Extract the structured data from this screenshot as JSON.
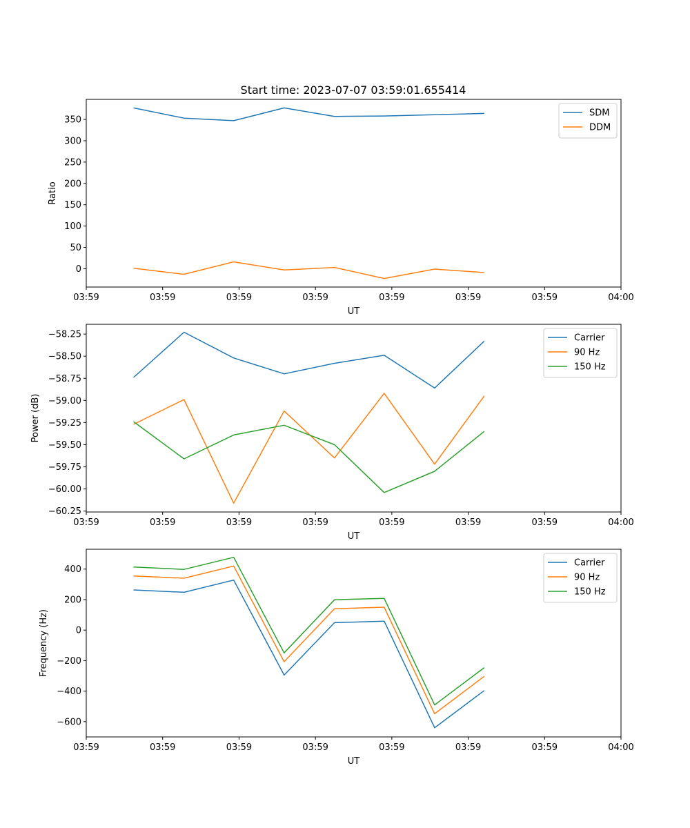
{
  "title": "Start time: 2023-07-07 03:59:01.655414",
  "colors": {
    "blue": "#1f77b4",
    "orange": "#ff7f0e",
    "green": "#2ca02c",
    "axis": "#000000",
    "legend_border": "#cccccc"
  },
  "chart_data": [
    {
      "type": "line",
      "title": "Start time: 2023-07-07 03:59:01.655414",
      "xlabel": "UT",
      "ylabel": "Ratio",
      "xticks": [
        "03:59",
        "03:59",
        "03:59",
        "03:59",
        "03:59",
        "03:59",
        "03:59",
        "04:00"
      ],
      "xlim": [
        0,
        7
      ],
      "ylim": [
        -43,
        397
      ],
      "yticks": [
        0,
        50,
        100,
        150,
        200,
        250,
        300,
        350
      ],
      "ytick_labels": [
        "0",
        "50",
        "100",
        "150",
        "200",
        "250",
        "300",
        "350"
      ],
      "legend_position": "top-right",
      "x": [
        0.62,
        1.28,
        1.93,
        2.59,
        3.25,
        3.9,
        4.56,
        5.21
      ],
      "series": [
        {
          "name": "SDM",
          "color": "#1f77b4",
          "values": [
            377,
            353,
            347,
            377,
            357,
            358,
            361,
            364
          ]
        },
        {
          "name": "DDM",
          "color": "#ff7f0e",
          "values": [
            1,
            -13,
            16,
            -3,
            3,
            -23,
            -1,
            -9
          ]
        }
      ]
    },
    {
      "type": "line",
      "title": "",
      "xlabel": "UT",
      "ylabel": "Power (dB)",
      "xticks": [
        "03:59",
        "03:59",
        "03:59",
        "03:59",
        "03:59",
        "03:59",
        "03:59",
        "04:00"
      ],
      "xlim": [
        0,
        7
      ],
      "ylim": [
        -60.26,
        -58.14
      ],
      "yticks": [
        -60.25,
        -60.0,
        -59.75,
        -59.5,
        -59.25,
        -59.0,
        -58.75,
        -58.5,
        -58.25
      ],
      "ytick_labels": [
        "−60.25",
        "−60.00",
        "−59.75",
        "−59.50",
        "−59.25",
        "−59.00",
        "−58.75",
        "−58.50",
        "−58.25"
      ],
      "legend_position": "top-right",
      "x": [
        0.62,
        1.28,
        1.93,
        2.59,
        3.25,
        3.9,
        4.56,
        5.21
      ],
      "series": [
        {
          "name": "Carrier",
          "color": "#1f77b4",
          "values": [
            -58.74,
            -58.23,
            -58.52,
            -58.7,
            -58.58,
            -58.49,
            -58.86,
            -58.33
          ]
        },
        {
          "name": "90 Hz",
          "color": "#ff7f0e",
          "values": [
            -59.27,
            -58.99,
            -60.16,
            -59.12,
            -59.65,
            -58.92,
            -59.72,
            -58.95
          ]
        },
        {
          "name": "150 Hz",
          "color": "#2ca02c",
          "values": [
            -59.24,
            -59.66,
            -59.39,
            -59.28,
            -59.5,
            -60.04,
            -59.8,
            -59.35
          ]
        }
      ]
    },
    {
      "type": "line",
      "title": "",
      "xlabel": "UT",
      "ylabel": "Frequency (Hz)",
      "xticks": [
        "03:59",
        "03:59",
        "03:59",
        "03:59",
        "03:59",
        "03:59",
        "03:59",
        "04:00"
      ],
      "xlim": [
        0,
        7
      ],
      "ylim": [
        -700,
        530
      ],
      "yticks": [
        -600,
        -400,
        -200,
        0,
        200,
        400
      ],
      "ytick_labels": [
        "−600",
        "−400",
        "−200",
        "0",
        "200",
        "400"
      ],
      "legend_position": "top-right",
      "x": [
        0.62,
        1.28,
        1.93,
        2.59,
        3.25,
        3.9,
        4.56,
        5.21
      ],
      "series": [
        {
          "name": "Carrier",
          "color": "#1f77b4",
          "values": [
            263,
            248,
            328,
            -295,
            49,
            59,
            -640,
            -396
          ]
        },
        {
          "name": "90 Hz",
          "color": "#ff7f0e",
          "values": [
            355,
            340,
            420,
            -207,
            140,
            150,
            -548,
            -303
          ]
        },
        {
          "name": "150 Hz",
          "color": "#2ca02c",
          "values": [
            414,
            398,
            477,
            -149,
            199,
            208,
            -490,
            -246
          ]
        }
      ]
    }
  ]
}
